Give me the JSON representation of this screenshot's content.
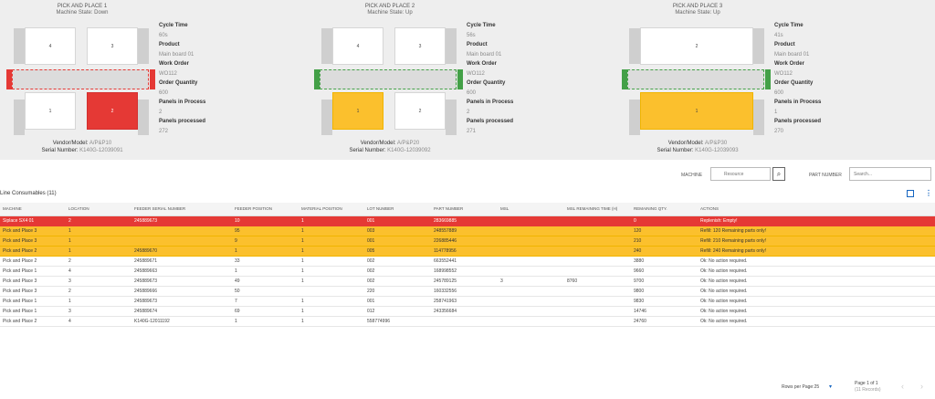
{
  "machines": [
    {
      "title": "PICK AND PLACE 1",
      "state": "Machine State: Down",
      "slots": {
        "top_left": "4",
        "top_right": "3",
        "bottom_left": "1",
        "bottom_right": "2"
      },
      "details": {
        "cycle_time_label": "Cycle Time",
        "cycle_time": "60s",
        "product_label": "Product",
        "product": "Main board 01",
        "work_order_label": "Work Order",
        "work_order": "WO112",
        "order_qty_label": "Order Quantity",
        "order_qty": "600",
        "panels_in_process_label": "Panels in Process",
        "panels_in_process": "2",
        "panels_processed_label": "Panels processed",
        "panels_processed": "272"
      },
      "vendor_label": "Vendor/Model:",
      "vendor": "A/P&P10",
      "serial_label": "Serial Number:",
      "serial": "K140G-12039091"
    },
    {
      "title": "PICK AND PLACE 2",
      "state": "Machine State: Up",
      "slots": {
        "top_left": "4",
        "top_right": "3",
        "bottom_left": "1",
        "bottom_right": "2"
      },
      "details": {
        "cycle_time_label": "Cycle Time",
        "cycle_time": "56s",
        "product_label": "Product",
        "product": "Main board 01",
        "work_order_label": "Work Order",
        "work_order": "WO112",
        "order_qty_label": "Order Quantity",
        "order_qty": "600",
        "panels_in_process_label": "Panels in Process",
        "panels_in_process": "2",
        "panels_processed_label": "Panels processed",
        "panels_processed": "271"
      },
      "vendor_label": "Vendor/Model:",
      "vendor": "A/P&P20",
      "serial_label": "Serial Number:",
      "serial": "K140G-12039092"
    },
    {
      "title": "PICK AND PLACE 3",
      "state": "Machine State: Up",
      "slots": {
        "top": "2",
        "bottom": "1"
      },
      "details": {
        "cycle_time_label": "Cycle Time",
        "cycle_time": "41s",
        "product_label": "Product",
        "product": "Main board 01",
        "work_order_label": "Work Order",
        "work_order": "WO112",
        "order_qty_label": "Order Quantity",
        "order_qty": "600",
        "panels_in_process_label": "Panels in Process",
        "panels_in_process": "1",
        "panels_processed_label": "Panels processed",
        "panels_processed": "270"
      },
      "vendor_label": "Vendor/Model:",
      "vendor": "A/P&P30",
      "serial_label": "Serial Number:",
      "serial": "K140G-12039093"
    }
  ],
  "search": {
    "machine_label": "MACHINE",
    "machine_placeholder": "Resource",
    "part_label": "PART NUMBER",
    "part_placeholder": "Search..."
  },
  "consumables": {
    "title": "Line Consumables (11)",
    "columns": [
      "MACHINE",
      "LOCATION",
      "FEEDER SERIAL NUMBER",
      "FEEDER POSITION",
      "MATERIAL POSITION",
      "LOT NUMBER",
      "PART NUMBER",
      "MSL",
      "MSL REMAINING TIME (H)",
      "REMAINING QTY.",
      "ACTIONS"
    ],
    "rows": [
      [
        "Siplace SX4 01",
        "2",
        "245889673",
        "10",
        "1",
        "001",
        "283669885",
        "",
        "",
        "0",
        "Replenish: Empty!"
      ],
      [
        "Pick and Place 3",
        "1",
        "",
        "95",
        "1",
        "003",
        "248557889",
        "",
        "",
        "120",
        "Refill: 120 Remaining parts only!"
      ],
      [
        "Pick and Place 3",
        "1",
        "",
        "9",
        "1",
        "001",
        "226885446",
        "",
        "",
        "210",
        "Refill: 210 Remaining parts only!"
      ],
      [
        "Pick and Place 2",
        "1",
        "245889670",
        "1",
        "1",
        "005",
        "114778956",
        "",
        "",
        "240",
        "Refill: 240 Remaining parts only!"
      ],
      [
        "Pick and Place 2",
        "2",
        "245889671",
        "33",
        "1",
        "002",
        "663552441",
        "",
        "",
        "3880",
        "Ok: No action required."
      ],
      [
        "Pick and Place 1",
        "4",
        "245889663",
        "1",
        "1",
        "002",
        "168998552",
        "",
        "",
        "9660",
        "Ok: No action required."
      ],
      [
        "Pick and Place 3",
        "3",
        "245889673",
        "49",
        "1",
        "002",
        "245789125",
        "3",
        "8760",
        "9700",
        "Ok: No action required."
      ],
      [
        "Pick and Place 3",
        "2",
        "245889666",
        "50",
        "",
        "220",
        "160332556",
        "",
        "",
        "9800",
        "Ok: No action required."
      ],
      [
        "Pick and Place 1",
        "1",
        "245889673",
        "7",
        "1",
        "001",
        "258741963",
        "",
        "",
        "9830",
        "Ok: No action required."
      ],
      [
        "Pick and Place 1",
        "3",
        "245889674",
        "69",
        "1",
        "012",
        "243356684",
        "",
        "",
        "14746",
        "Ok: No action required."
      ],
      [
        "Pick and Place 2",
        "4",
        "K140G-12011192",
        "1",
        "1",
        "558774996",
        "",
        "",
        "",
        "24760",
        "Ok: No action required."
      ]
    ],
    "row_status": [
      "red",
      "yellow",
      "yellow",
      "yellow",
      "",
      "",
      "",
      "",
      "",
      "",
      ""
    ]
  },
  "pagination": {
    "rows_per_page": "Rows per Page:25",
    "page": "Page 1 of 1",
    "records": "(11 Records)"
  },
  "colors": {
    "down": "#e53935",
    "warning": "#fbc02d",
    "up": "#43a047",
    "accent": "#1565c0"
  }
}
